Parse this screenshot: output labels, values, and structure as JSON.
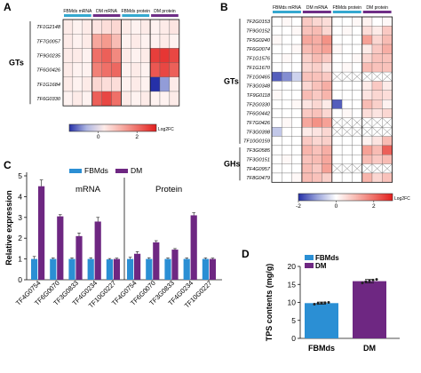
{
  "chart_data": [
    {
      "panel": "A",
      "type": "heatmap",
      "column_groups": [
        "FBMds mRNA",
        "DM mRNA",
        "FBMds protein",
        "DM protein"
      ],
      "group_colors": [
        "#35a8cf",
        "#6e2e86",
        "#35a8cf",
        "#6e2e86"
      ],
      "rows": [
        "TF1G2148",
        "TF7G0057",
        "TF9G0235",
        "TF6G0426",
        "TF1G1684",
        "TF6G0330"
      ],
      "row_group_label": "GTs",
      "matrix": [
        [
          0.3,
          0.2,
          0.3,
          0.4,
          0.5,
          0.6,
          0.3,
          0.2,
          0.3,
          0.2,
          0.3,
          0.4
        ],
        [
          0.3,
          0.2,
          0.3,
          1.3,
          1.5,
          1.0,
          0.2,
          0.3,
          0.2,
          0.2,
          0.3,
          0.2
        ],
        [
          0.3,
          0.3,
          0.2,
          2.0,
          2.2,
          1.7,
          0.3,
          0.2,
          0.3,
          2.6,
          2.7,
          2.5
        ],
        [
          0.3,
          0.2,
          0.2,
          1.8,
          2.0,
          2.1,
          0.2,
          0.3,
          0.2,
          2.3,
          2.5,
          2.2
        ],
        [
          0.3,
          0.2,
          0.3,
          0.6,
          0.5,
          0.5,
          0.2,
          0.3,
          0.2,
          -1.5,
          -0.8,
          0.3
        ],
        [
          0.2,
          0.3,
          0.2,
          2.2,
          2.5,
          2.0,
          0.3,
          0.2,
          0.3,
          0.2,
          0.2,
          0.3
        ]
      ],
      "colorbar": {
        "ticks": [
          "0",
          "2"
        ],
        "label": "Log2FC",
        "range": [
          -1.5,
          3
        ]
      }
    },
    {
      "panel": "B",
      "type": "heatmap",
      "column_groups": [
        "FBMds mRNA",
        "DM mRNA",
        "FBMds protein",
        "DM protein"
      ],
      "group_colors": [
        "#35a8cf",
        "#6e2e86",
        "#35a8cf",
        "#6e2e86"
      ],
      "rows": [
        "TF2G0153",
        "TF9G0152",
        "TF5G0240",
        "TF6G0074",
        "TF1G1576",
        "TF1G1670",
        "TF1G0465",
        "TF3G0348",
        "TF9G0118",
        "TF2G0330",
        "TF6G0442",
        "TF7G0426",
        "TF3G0398",
        "TF10G0159",
        "TF3G0585",
        "TF3G0151",
        "TF4G0957",
        "TF8G0479"
      ],
      "row_groups": [
        {
          "label": "GTs",
          "rows": [
            0,
            13
          ]
        },
        {
          "label": "GHs",
          "rows": [
            14,
            17
          ]
        }
      ],
      "missing_rows_protein": [
        6,
        11,
        12,
        16
      ],
      "matrix": [
        [
          0,
          0.1,
          0,
          0.8,
          0.6,
          0.5,
          0,
          0,
          0.1,
          0.2,
          0,
          0.1
        ],
        [
          0,
          0,
          0.1,
          0.9,
          1.0,
          0.6,
          0,
          0.1,
          0,
          0.5,
          0.3,
          0.8
        ],
        [
          0.1,
          0,
          0,
          1.3,
          1.2,
          1.6,
          0,
          0,
          0,
          1.4,
          0.6,
          1.0
        ],
        [
          0,
          0,
          0.1,
          1.0,
          1.2,
          1.4,
          0.1,
          0,
          0,
          0.3,
          0.8,
          1.2
        ],
        [
          0,
          0.1,
          0,
          0.7,
          1.0,
          0.8,
          0,
          0,
          0.1,
          0.6,
          0.9,
          0.9
        ],
        [
          0,
          0,
          0,
          0.6,
          0.7,
          0.4,
          0,
          0.1,
          0,
          1.0,
          0.9,
          0.9
        ],
        [
          -1.6,
          -1.2,
          -0.5,
          0.9,
          0.9,
          0.8,
          null,
          null,
          null,
          null,
          null,
          null
        ],
        [
          0,
          0,
          0,
          0.6,
          0.9,
          1.2,
          0,
          0,
          0,
          0.3,
          0.8,
          0.3
        ],
        [
          0.1,
          0,
          0,
          1.0,
          0.8,
          1.1,
          0,
          0,
          0,
          0.4,
          0.6,
          0.5
        ],
        [
          0,
          0,
          0.1,
          0.4,
          0.6,
          0.3,
          -1.6,
          0,
          0,
          1.0,
          0.7,
          0.2
        ],
        [
          0,
          0,
          0,
          0.8,
          0.9,
          0.6,
          0,
          0.1,
          0,
          0.5,
          0.4,
          0.6
        ],
        [
          0,
          0.1,
          0,
          1.3,
          1.6,
          1.4,
          null,
          null,
          null,
          null,
          null,
          null
        ],
        [
          -0.6,
          0,
          0,
          0.3,
          0.4,
          0.6,
          null,
          null,
          null,
          null,
          null,
          null
        ],
        [
          0,
          0,
          0,
          0.8,
          0.6,
          0.7,
          0,
          0,
          0,
          0.2,
          0.4,
          1.0
        ],
        [
          0,
          0,
          0,
          1.1,
          0.9,
          1.2,
          0,
          0,
          0,
          1.4,
          1.0,
          2.2
        ],
        [
          0,
          0.1,
          0,
          0.9,
          1.0,
          1.3,
          0,
          0,
          0,
          1.0,
          0.8,
          1.0
        ],
        [
          0,
          0,
          0,
          1.0,
          0.8,
          1.4,
          null,
          null,
          null,
          null,
          null,
          null
        ],
        [
          0,
          0,
          0.1,
          1.0,
          0.9,
          0.7,
          0,
          0,
          0,
          1.1,
          0.6,
          0.9
        ]
      ],
      "colorbar": {
        "ticks": [
          "-2",
          "0",
          "2"
        ],
        "label": "Log2FC",
        "range": [
          -2,
          3
        ]
      }
    },
    {
      "panel": "C",
      "type": "bar",
      "legend": [
        "FBMds",
        "DM"
      ],
      "series_colors": [
        "#2b8fd4",
        "#6e2782"
      ],
      "ylabel": "Relative expression",
      "ylim": [
        0,
        5
      ],
      "yticks": [
        0,
        1,
        2,
        3,
        4,
        5
      ],
      "groups": [
        {
          "title": "mRNA",
          "categories": [
            "TF4G0754",
            "TF6G0070",
            "TF3G0833",
            "TF4G0234",
            "TF10G0227"
          ],
          "series": [
            {
              "name": "FBMds",
              "values": [
                1.0,
                1.0,
                1.0,
                1.0,
                0.98
              ],
              "errors": [
                0.12,
                0.05,
                0.05,
                0.06,
                0.04
              ]
            },
            {
              "name": "DM",
              "values": [
                4.5,
                3.05,
                2.1,
                2.8,
                1.0
              ],
              "errors": [
                0.3,
                0.08,
                0.15,
                0.2,
                0.04
              ]
            }
          ]
        },
        {
          "title": "Protein",
          "categories": [
            "TF4G0754",
            "TF6G0070",
            "TF3G0833",
            "TF4G0234",
            "TF10G0227"
          ],
          "series": [
            {
              "name": "FBMds",
              "values": [
                1.0,
                1.0,
                1.0,
                1.0,
                1.0
              ],
              "errors": [
                0.08,
                0.06,
                0.05,
                0.05,
                0.05
              ]
            },
            {
              "name": "DM",
              "values": [
                1.25,
                1.8,
                1.45,
                3.1,
                1.0
              ],
              "errors": [
                0.1,
                0.08,
                0.05,
                0.12,
                0.04
              ]
            }
          ]
        }
      ]
    },
    {
      "panel": "D",
      "type": "bar",
      "categories": [
        "FBMds",
        "DM"
      ],
      "values": [
        9.8,
        15.9
      ],
      "errors": [
        0.3,
        0.5
      ],
      "points": [
        [
          9.5,
          9.7,
          9.8,
          9.9,
          10.0
        ],
        [
          15.4,
          15.8,
          16.0,
          16.2,
          16.4
        ]
      ],
      "colors": [
        "#2b8fd4",
        "#6e2782"
      ],
      "legend": [
        "FBMds",
        "DM"
      ],
      "ylabel": "TPS contents (mg/g)",
      "ylim": [
        0,
        20
      ],
      "yticks": [
        0,
        5,
        10,
        15,
        20
      ]
    }
  ]
}
